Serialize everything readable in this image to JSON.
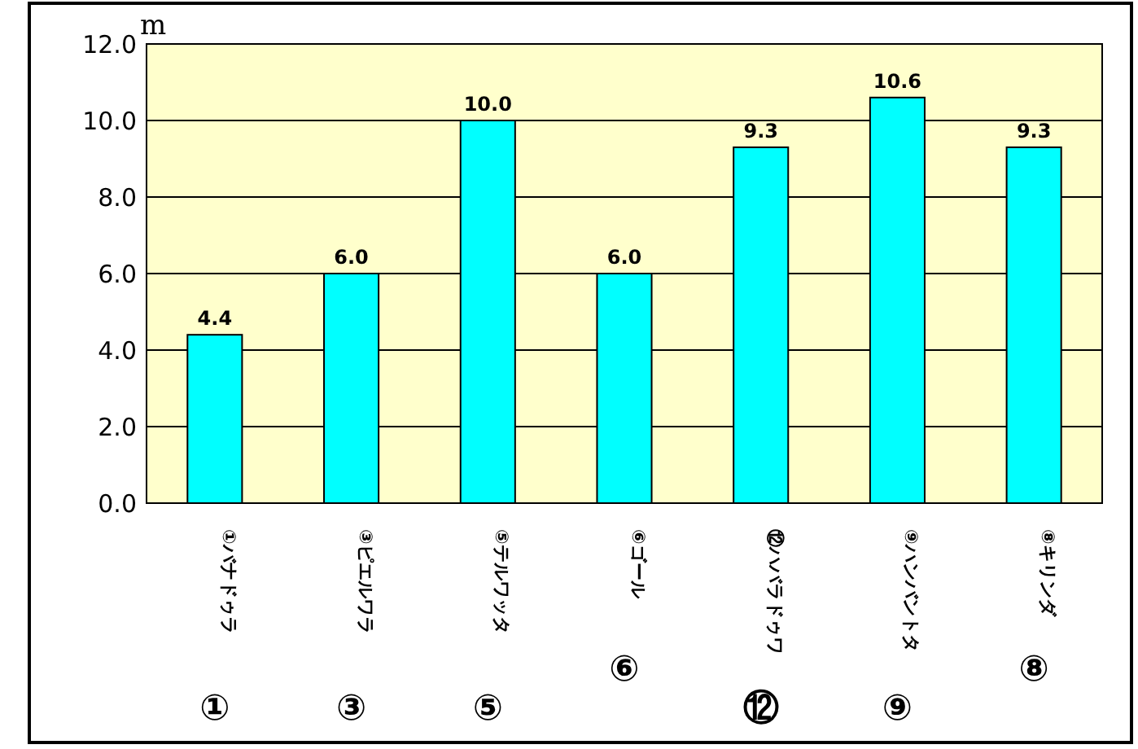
{
  "chart_data": {
    "type": "bar",
    "ylabel": "m",
    "categories": [
      "①バナドゥラ",
      "③ピエルワラ",
      "⑤テルワッタ",
      "⑥ゴール",
      "⑫ハバラドゥワ",
      "⑨ハンバントタ",
      "⑧キリンダ"
    ],
    "values": [
      4.4,
      6.0,
      10.0,
      6.0,
      9.3,
      10.6,
      9.3
    ],
    "value_labels": [
      "4.4",
      "6.0",
      "10.0",
      "6.0",
      "9.3",
      "10.6",
      "9.3"
    ],
    "color": "#00ffff",
    "ylim": [
      0,
      12
    ],
    "yticks": [
      {
        "value": 0,
        "label": "0.0"
      },
      {
        "value": 2,
        "label": "2.0"
      },
      {
        "value": 4,
        "label": "4.0"
      },
      {
        "value": 6,
        "label": "6.0"
      },
      {
        "value": 8,
        "label": "8.0"
      },
      {
        "value": 10,
        "label": "10.0"
      },
      {
        "value": 12,
        "label": "12.0"
      }
    ],
    "grid": "y",
    "annotations": [
      "①",
      "③",
      "⑤",
      "⑥",
      "⑫",
      "⑨",
      "⑧"
    ]
  }
}
